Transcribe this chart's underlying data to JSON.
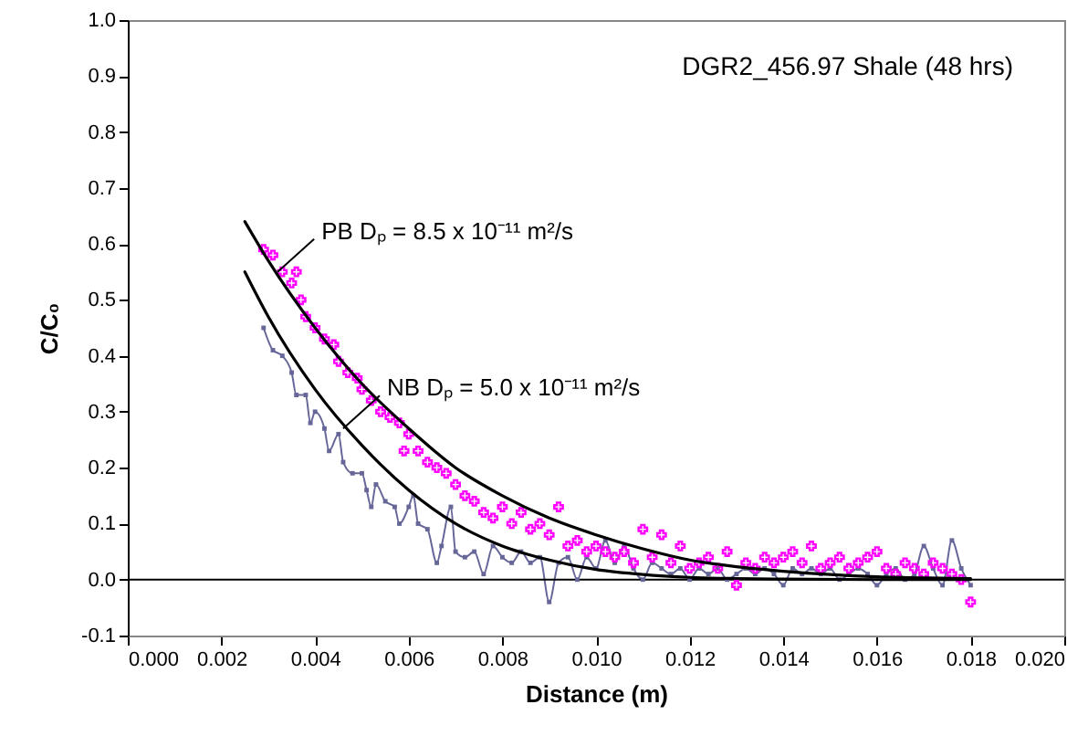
{
  "chart_data": {
    "type": "scatter",
    "title": "DGR2_456.97 Shale (48 hrs)",
    "xlabel": "Distance (m)",
    "ylabel": "C/C₀",
    "xlim": [
      0,
      0.02
    ],
    "ylim": [
      -0.1,
      1.0
    ],
    "xticks": [
      {
        "value": 0,
        "label": "0.000"
      },
      {
        "value": 0.002,
        "label": "0.002"
      },
      {
        "value": 0.004,
        "label": "0.004"
      },
      {
        "value": 0.006,
        "label": "0.006"
      },
      {
        "value": 0.008,
        "label": "0.008"
      },
      {
        "value": 0.01,
        "label": "0.010"
      },
      {
        "value": 0.012,
        "label": "0.012"
      },
      {
        "value": 0.014,
        "label": "0.014"
      },
      {
        "value": 0.016,
        "label": "0.016"
      },
      {
        "value": 0.018,
        "label": "0.018"
      },
      {
        "value": 0.02,
        "label": "0.020"
      }
    ],
    "yticks": [
      {
        "value": -0.1,
        "label": "-0.1"
      },
      {
        "value": 0,
        "label": "0.0"
      },
      {
        "value": 0.1,
        "label": "0.1"
      },
      {
        "value": 0.2,
        "label": "0.2"
      },
      {
        "value": 0.3,
        "label": "0.3"
      },
      {
        "value": 0.4,
        "label": "0.4"
      },
      {
        "value": 0.5,
        "label": "0.5"
      },
      {
        "value": 0.6,
        "label": "0.6"
      },
      {
        "value": 0.7,
        "label": "0.7"
      },
      {
        "value": 0.8,
        "label": "0.8"
      },
      {
        "value": 0.9,
        "label": "0.9"
      },
      {
        "value": 1.0,
        "label": "1.0"
      }
    ],
    "grid": false,
    "ref_lines": [
      {
        "axis": "y",
        "value": 0,
        "color": "#000000"
      }
    ],
    "annotations": [
      {
        "text": "PB Dₚ = 8.5 x 10⁻¹¹ m²/s",
        "x": 0.0032,
        "y": 0.55
      },
      {
        "text": "NB Dₚ = 5.0 x 10⁻¹¹ m²/s",
        "x": 0.0046,
        "y": 0.27
      }
    ],
    "series": [
      {
        "type": "line",
        "marker": "square",
        "color": "#666699",
        "x": [
          0.0029,
          0.0031,
          0.0033,
          0.0035,
          0.0036,
          0.0038,
          0.0039,
          0.004,
          0.0042,
          0.0043,
          0.0045,
          0.0046,
          0.0048,
          0.005,
          0.0051,
          0.0052,
          0.0053,
          0.0055,
          0.0057,
          0.0058,
          0.006,
          0.0061,
          0.0062,
          0.0064,
          0.0066,
          0.0067,
          0.0069,
          0.007,
          0.0072,
          0.0074,
          0.0076,
          0.0078,
          0.008,
          0.0082,
          0.0084,
          0.0086,
          0.0088,
          0.009,
          0.0092,
          0.0094,
          0.0096,
          0.0098,
          0.01,
          0.0102,
          0.0104,
          0.0106,
          0.0108,
          0.011,
          0.0112,
          0.0114,
          0.0116,
          0.0118,
          0.012,
          0.0122,
          0.0124,
          0.0126,
          0.0128,
          0.013,
          0.0132,
          0.0134,
          0.0136,
          0.0138,
          0.014,
          0.0142,
          0.0144,
          0.0146,
          0.0148,
          0.015,
          0.0152,
          0.0154,
          0.0156,
          0.0158,
          0.016,
          0.0162,
          0.0164,
          0.0166,
          0.0168,
          0.017,
          0.0172,
          0.0174,
          0.0176,
          0.0178,
          0.018
        ],
        "values": [
          0.45,
          0.41,
          0.4,
          0.37,
          0.33,
          0.33,
          0.28,
          0.3,
          0.27,
          0.23,
          0.26,
          0.21,
          0.19,
          0.19,
          0.16,
          0.13,
          0.17,
          0.14,
          0.13,
          0.1,
          0.13,
          0.15,
          0.1,
          0.09,
          0.03,
          0.06,
          0.13,
          0.05,
          0.04,
          0.05,
          0.01,
          0.06,
          0.04,
          0.03,
          0.05,
          0.03,
          0.04,
          -0.04,
          0.03,
          0.04,
          0.0,
          0.04,
          0.02,
          0.07,
          0.03,
          0.06,
          0.02,
          0.0,
          0.03,
          0.02,
          0.01,
          0.02,
          0.0,
          0.02,
          0.01,
          0.02,
          0.0,
          0.01,
          0.02,
          0.01,
          0.02,
          0.01,
          -0.01,
          0.02,
          0.01,
          0.02,
          0.01,
          0.02,
          0.0,
          0.01,
          0.02,
          0.01,
          -0.01,
          0.01,
          0.02,
          0.0,
          0.01,
          0.06,
          0.02,
          -0.01,
          0.07,
          0.02,
          -0.01
        ]
      },
      {
        "marker": "cross",
        "color": "#ff00ff",
        "x": [
          0.0029,
          0.0031,
          0.0033,
          0.0035,
          0.0036,
          0.0037,
          0.0038,
          0.004,
          0.0042,
          0.0044,
          0.0045,
          0.0047,
          0.0049,
          0.005,
          0.0052,
          0.0054,
          0.0056,
          0.0058,
          0.0059,
          0.006,
          0.0062,
          0.0064,
          0.0066,
          0.0068,
          0.007,
          0.0072,
          0.0074,
          0.0076,
          0.0078,
          0.008,
          0.0082,
          0.0084,
          0.0086,
          0.0088,
          0.009,
          0.0092,
          0.0094,
          0.0096,
          0.0098,
          0.01,
          0.0102,
          0.0104,
          0.0106,
          0.0108,
          0.011,
          0.0112,
          0.0114,
          0.0116,
          0.0118,
          0.012,
          0.0122,
          0.0124,
          0.0126,
          0.0128,
          0.013,
          0.0132,
          0.0134,
          0.0136,
          0.0138,
          0.014,
          0.0142,
          0.0144,
          0.0146,
          0.0148,
          0.015,
          0.0152,
          0.0154,
          0.0156,
          0.0158,
          0.016,
          0.0162,
          0.0164,
          0.0166,
          0.0168,
          0.017,
          0.0172,
          0.0174,
          0.0176,
          0.0178,
          0.018
        ],
        "values": [
          0.59,
          0.58,
          0.55,
          0.53,
          0.55,
          0.5,
          0.47,
          0.45,
          0.43,
          0.42,
          0.39,
          0.37,
          0.36,
          0.34,
          0.32,
          0.3,
          0.29,
          0.28,
          0.23,
          0.26,
          0.23,
          0.21,
          0.2,
          0.19,
          0.17,
          0.15,
          0.14,
          0.12,
          0.11,
          0.13,
          0.1,
          0.12,
          0.09,
          0.1,
          0.08,
          0.13,
          0.06,
          0.07,
          0.05,
          0.06,
          0.05,
          0.04,
          0.05,
          0.03,
          0.09,
          0.04,
          0.08,
          0.03,
          0.06,
          0.02,
          0.03,
          0.04,
          0.02,
          0.05,
          -0.01,
          0.03,
          0.02,
          0.04,
          0.03,
          0.04,
          0.05,
          0.03,
          0.06,
          0.02,
          0.03,
          0.04,
          0.02,
          0.03,
          0.04,
          0.05,
          0.02,
          0.01,
          0.03,
          0.02,
          0.01,
          0.03,
          0.02,
          0.01,
          0.0,
          -0.04
        ]
      },
      {
        "type": "line",
        "marker": "none",
        "color": "#000000",
        "x": [
          0.0025,
          0.003,
          0.004,
          0.005,
          0.006,
          0.007,
          0.008,
          0.009,
          0.01,
          0.011,
          0.012,
          0.013,
          0.014,
          0.015,
          0.016,
          0.017,
          0.018
        ],
        "values": [
          0.64,
          0.57,
          0.45,
          0.35,
          0.27,
          0.2,
          0.15,
          0.11,
          0.08,
          0.055,
          0.035,
          0.023,
          0.015,
          0.009,
          0.005,
          0.003,
          0.002
        ]
      },
      {
        "type": "line",
        "marker": "none",
        "color": "#000000",
        "x": [
          0.0025,
          0.003,
          0.004,
          0.005,
          0.006,
          0.007,
          0.008,
          0.009,
          0.01,
          0.011,
          0.012,
          0.013,
          0.014,
          0.016,
          0.018
        ],
        "values": [
          0.55,
          0.47,
          0.34,
          0.24,
          0.16,
          0.1,
          0.06,
          0.035,
          0.018,
          0.009,
          0.004,
          0.002,
          0.001,
          0.0,
          0.0
        ]
      }
    ]
  }
}
